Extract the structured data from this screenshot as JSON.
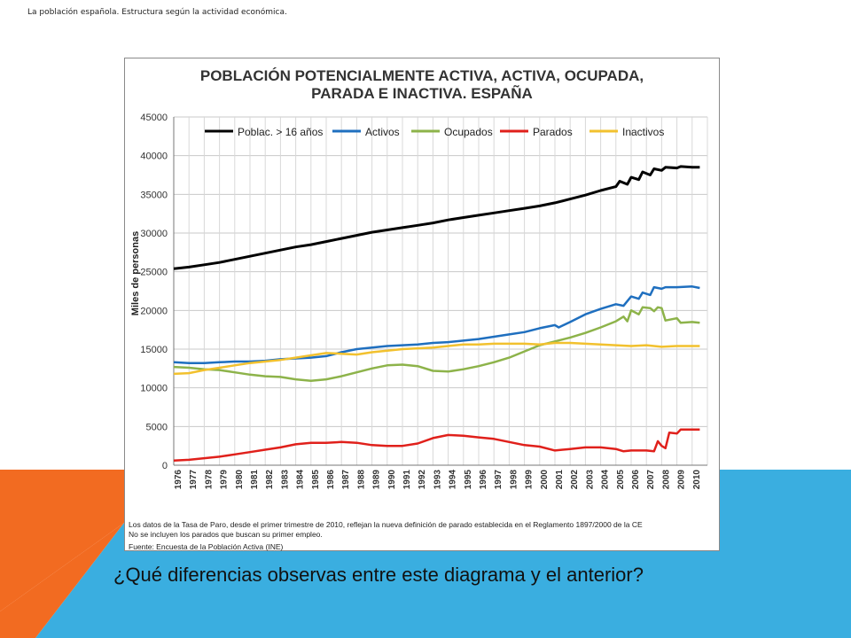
{
  "slide": {
    "header": "La población española. Estructura según la actividad económica.",
    "question": "¿Qué diferencias observas entre este diagrama y el anterior?"
  },
  "colors": {
    "orange": "#F26B21",
    "blue": "#3AAEE0",
    "poblac": "#000000",
    "activos": "#1F6FBF",
    "ocupados": "#8DB34A",
    "parados": "#E0201B",
    "inactivos": "#F2C12E"
  },
  "chart_data": {
    "type": "line",
    "title_line1": "POBLACIÓN POTENCIALMENTE ACTIVA, ACTIVA, OCUPADA,",
    "title_line2": "PARADA E INACTIVA. ESPAÑA",
    "ylabel": "Miles de personas",
    "xlabel": "",
    "ylim": [
      0,
      45000
    ],
    "yticks": [
      0,
      5000,
      10000,
      15000,
      20000,
      25000,
      30000,
      35000,
      40000,
      45000
    ],
    "year_labels": [
      "1976",
      "1977",
      "1978",
      "1979",
      "1980",
      "1981",
      "1982",
      "1983",
      "1984",
      "1985",
      "1986",
      "1987",
      "1988",
      "1989",
      "1990",
      "1991",
      "1992",
      "1993",
      "1994",
      "1995",
      "1996",
      "1997",
      "1998",
      "1999",
      "2000",
      "2001",
      "2002",
      "2003",
      "2004",
      "2005",
      "2006",
      "2007",
      "2008",
      "2009",
      "2010"
    ],
    "x_range": [
      1976,
      2011
    ],
    "grid": true,
    "legend_position": "top",
    "series": [
      {
        "name": "Poblac. > 16 años",
        "color": "#000000",
        "points": [
          [
            1976,
            25400
          ],
          [
            1977,
            25600
          ],
          [
            1978,
            25900
          ],
          [
            1979,
            26200
          ],
          [
            1980,
            26600
          ],
          [
            1981,
            27000
          ],
          [
            1982,
            27400
          ],
          [
            1983,
            27800
          ],
          [
            1984,
            28200
          ],
          [
            1985,
            28500
          ],
          [
            1986,
            28900
          ],
          [
            1987,
            29300
          ],
          [
            1988,
            29700
          ],
          [
            1989,
            30100
          ],
          [
            1990,
            30400
          ],
          [
            1991,
            30700
          ],
          [
            1992,
            31000
          ],
          [
            1993,
            31300
          ],
          [
            1994,
            31700
          ],
          [
            1995,
            32000
          ],
          [
            1996,
            32300
          ],
          [
            1997,
            32600
          ],
          [
            1998,
            32900
          ],
          [
            1999,
            33200
          ],
          [
            2000,
            33500
          ],
          [
            2001,
            33900
          ],
          [
            2002,
            34400
          ],
          [
            2003,
            34900
          ],
          [
            2004,
            35500
          ],
          [
            2005,
            36000
          ],
          [
            2005.25,
            36700
          ],
          [
            2005.75,
            36300
          ],
          [
            2006,
            37200
          ],
          [
            2006.5,
            36900
          ],
          [
            2006.75,
            37900
          ],
          [
            2007.25,
            37500
          ],
          [
            2007.5,
            38300
          ],
          [
            2008,
            38100
          ],
          [
            2008.25,
            38500
          ],
          [
            2009,
            38400
          ],
          [
            2009.25,
            38600
          ],
          [
            2010,
            38500
          ],
          [
            2010.5,
            38500
          ]
        ]
      },
      {
        "name": "Activos",
        "color": "#1F6FBF",
        "points": [
          [
            1976,
            13300
          ],
          [
            1977,
            13200
          ],
          [
            1978,
            13200
          ],
          [
            1979,
            13300
          ],
          [
            1980,
            13400
          ],
          [
            1981,
            13400
          ],
          [
            1982,
            13500
          ],
          [
            1983,
            13700
          ],
          [
            1984,
            13800
          ],
          [
            1985,
            13900
          ],
          [
            1986,
            14100
          ],
          [
            1987,
            14600
          ],
          [
            1988,
            15000
          ],
          [
            1989,
            15200
          ],
          [
            1990,
            15400
          ],
          [
            1991,
            15500
          ],
          [
            1992,
            15600
          ],
          [
            1993,
            15800
          ],
          [
            1994,
            15900
          ],
          [
            1995,
            16100
          ],
          [
            1996,
            16300
          ],
          [
            1997,
            16600
          ],
          [
            1998,
            16900
          ],
          [
            1999,
            17200
          ],
          [
            2000,
            17700
          ],
          [
            2001,
            18100
          ],
          [
            2001.25,
            17800
          ],
          [
            2002,
            18500
          ],
          [
            2003,
            19500
          ],
          [
            2004,
            20200
          ],
          [
            2005,
            20800
          ],
          [
            2005.5,
            20600
          ],
          [
            2006,
            21800
          ],
          [
            2006.5,
            21500
          ],
          [
            2006.75,
            22300
          ],
          [
            2007.25,
            22000
          ],
          [
            2007.5,
            23000
          ],
          [
            2008,
            22800
          ],
          [
            2008.25,
            23000
          ],
          [
            2009,
            23000
          ],
          [
            2010,
            23100
          ],
          [
            2010.5,
            22900
          ]
        ]
      },
      {
        "name": "Ocupados",
        "color": "#8DB34A",
        "points": [
          [
            1976,
            12700
          ],
          [
            1977,
            12600
          ],
          [
            1978,
            12400
          ],
          [
            1979,
            12300
          ],
          [
            1980,
            12000
          ],
          [
            1981,
            11700
          ],
          [
            1982,
            11500
          ],
          [
            1983,
            11400
          ],
          [
            1984,
            11100
          ],
          [
            1985,
            10900
          ],
          [
            1986,
            11100
          ],
          [
            1987,
            11500
          ],
          [
            1988,
            12000
          ],
          [
            1989,
            12500
          ],
          [
            1990,
            12900
          ],
          [
            1991,
            13000
          ],
          [
            1992,
            12800
          ],
          [
            1993,
            12200
          ],
          [
            1994,
            12100
          ],
          [
            1995,
            12400
          ],
          [
            1996,
            12800
          ],
          [
            1997,
            13300
          ],
          [
            1998,
            13900
          ],
          [
            1999,
            14700
          ],
          [
            2000,
            15500
          ],
          [
            2001,
            16000
          ],
          [
            2002,
            16500
          ],
          [
            2003,
            17100
          ],
          [
            2004,
            17800
          ],
          [
            2005,
            18600
          ],
          [
            2005.5,
            19200
          ],
          [
            2005.75,
            18600
          ],
          [
            2006,
            20000
          ],
          [
            2006.5,
            19500
          ],
          [
            2006.75,
            20400
          ],
          [
            2007.25,
            20300
          ],
          [
            2007.5,
            19900
          ],
          [
            2007.75,
            20400
          ],
          [
            2008,
            20300
          ],
          [
            2008.25,
            18700
          ],
          [
            2009,
            19000
          ],
          [
            2009.25,
            18400
          ],
          [
            2010,
            18500
          ],
          [
            2010.5,
            18400
          ]
        ]
      },
      {
        "name": "Parados",
        "color": "#E0201B",
        "points": [
          [
            1976,
            600
          ],
          [
            1977,
            700
          ],
          [
            1978,
            900
          ],
          [
            1979,
            1100
          ],
          [
            1980,
            1400
          ],
          [
            1981,
            1700
          ],
          [
            1982,
            2000
          ],
          [
            1983,
            2300
          ],
          [
            1984,
            2700
          ],
          [
            1985,
            2900
          ],
          [
            1986,
            2900
          ],
          [
            1987,
            3000
          ],
          [
            1988,
            2900
          ],
          [
            1989,
            2600
          ],
          [
            1990,
            2500
          ],
          [
            1991,
            2500
          ],
          [
            1992,
            2800
          ],
          [
            1993,
            3500
          ],
          [
            1994,
            3900
          ],
          [
            1995,
            3800
          ],
          [
            1996,
            3600
          ],
          [
            1997,
            3400
          ],
          [
            1998,
            3000
          ],
          [
            1999,
            2600
          ],
          [
            2000,
            2400
          ],
          [
            2001,
            1900
          ],
          [
            2002,
            2100
          ],
          [
            2003,
            2300
          ],
          [
            2004,
            2300
          ],
          [
            2005,
            2100
          ],
          [
            2005.5,
            1800
          ],
          [
            2006,
            1900
          ],
          [
            2007,
            1900
          ],
          [
            2007.5,
            1800
          ],
          [
            2007.75,
            3100
          ],
          [
            2008,
            2500
          ],
          [
            2008.25,
            2200
          ],
          [
            2008.5,
            4200
          ],
          [
            2009,
            4100
          ],
          [
            2009.25,
            4600
          ],
          [
            2010,
            4600
          ],
          [
            2010.5,
            4600
          ]
        ]
      },
      {
        "name": "Inactivos",
        "color": "#F2C12E",
        "points": [
          [
            1976,
            11800
          ],
          [
            1977,
            11900
          ],
          [
            1978,
            12300
          ],
          [
            1979,
            12600
          ],
          [
            1980,
            12900
          ],
          [
            1981,
            13200
          ],
          [
            1982,
            13400
          ],
          [
            1983,
            13600
          ],
          [
            1984,
            13900
          ],
          [
            1985,
            14200
          ],
          [
            1986,
            14500
          ],
          [
            1987,
            14400
          ],
          [
            1988,
            14300
          ],
          [
            1989,
            14600
          ],
          [
            1990,
            14800
          ],
          [
            1991,
            15000
          ],
          [
            1992,
            15100
          ],
          [
            1993,
            15200
          ],
          [
            1994,
            15400
          ],
          [
            1995,
            15600
          ],
          [
            1996,
            15600
          ],
          [
            1997,
            15700
          ],
          [
            1998,
            15700
          ],
          [
            1999,
            15700
          ],
          [
            2000,
            15600
          ],
          [
            2001,
            15800
          ],
          [
            2002,
            15800
          ],
          [
            2003,
            15700
          ],
          [
            2004,
            15600
          ],
          [
            2005,
            15500
          ],
          [
            2006,
            15400
          ],
          [
            2007,
            15500
          ],
          [
            2008,
            15300
          ],
          [
            2009,
            15400
          ],
          [
            2010,
            15400
          ],
          [
            2010.5,
            15400
          ]
        ]
      }
    ],
    "notes": [
      "Los datos de la Tasa de Paro, desde el primer trimestre de 2010, reflejan la nueva definición de parado establecida en el Reglamento 1897/2000 de la CE",
      "No se incluyen los parados que buscan su primer empleo.",
      "Fuente: Encuesta de la Población Activa (INE)"
    ]
  }
}
